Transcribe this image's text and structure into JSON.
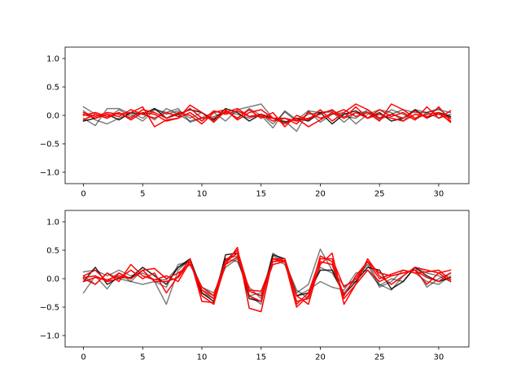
{
  "chart_data": [
    {
      "type": "line",
      "title": "",
      "xlabel": "",
      "ylabel": "",
      "xlim": [
        -1.55,
        32.55
      ],
      "ylim": [
        -1.2,
        1.2
      ],
      "xticks": [
        0,
        5,
        10,
        15,
        20,
        25,
        30
      ],
      "yticks": [
        -1.0,
        -0.5,
        0.0,
        0.5,
        1.0
      ],
      "ytick_labels": [
        "−1.0",
        "−0.5",
        "0.0",
        "0.5",
        "1.0"
      ],
      "x": [
        0,
        1,
        2,
        3,
        4,
        5,
        6,
        7,
        8,
        9,
        10,
        11,
        12,
        13,
        14,
        15,
        16,
        17,
        18,
        19,
        20,
        21,
        22,
        23,
        24,
        25,
        26,
        27,
        28,
        29,
        30,
        31
      ],
      "grid": false,
      "series": [
        {
          "color": "#000000",
          "alpha": 0.5,
          "values": [
            0.15,
            0.02,
            -0.05,
            0.1,
            -0.02,
            0.05,
            -0.08,
            0.12,
            0.02,
            -0.1,
            -0.04,
            0.05,
            -0.1,
            0.1,
            0.15,
            0.2,
            -0.05,
            -0.1,
            -0.28,
            0.08,
            0.05,
            0.06,
            -0.12,
            0.05,
            0.06,
            -0.05,
            0.1,
            0.02,
            -0.08,
            0.05,
            0.1,
            0.05
          ]
        },
        {
          "color": "#000000",
          "alpha": 0.5,
          "values": [
            -0.05,
            -0.18,
            0.12,
            0.12,
            0.02,
            -0.1,
            0.1,
            0.05,
            0.12,
            -0.12,
            -0.05,
            -0.02,
            0.05,
            0.02,
            -0.05,
            0.02,
            -0.15,
            0.06,
            -0.1,
            0.02,
            0.05,
            0.08,
            -0.02,
            -0.05,
            0.1,
            -0.08,
            0.02,
            0.1,
            0.05,
            0.05,
            -0.05,
            0.02
          ]
        },
        {
          "color": "#000000",
          "alpha": 0.5,
          "values": [
            0.08,
            -0.08,
            -0.15,
            -0.05,
            0.05,
            -0.05,
            0.12,
            0.02,
            0.08,
            -0.05,
            0.05,
            -0.1,
            0.08,
            -0.05,
            0.12,
            0.0,
            -0.22,
            0.08,
            -0.08,
            0.08,
            -0.12,
            0.02,
            0.05,
            -0.15,
            0.02,
            0.1,
            0.05,
            -0.1,
            0.1,
            0.05,
            0.12,
            -0.05
          ]
        },
        {
          "color": "#000000",
          "alpha": 0.85,
          "values": [
            -0.1,
            -0.05,
            0.02,
            -0.08,
            0.05,
            0.02,
            0.12,
            -0.05,
            0.02,
            0.1,
            0.05,
            -0.08,
            0.12,
            0.05,
            -0.1,
            0.02,
            -0.05,
            -0.12,
            -0.05,
            -0.1,
            0.05,
            -0.15,
            0.02,
            0.08,
            -0.05,
            0.05,
            -0.1,
            -0.05,
            0.1,
            -0.05,
            0.05,
            -0.02
          ]
        },
        {
          "color": "#ff0000",
          "alpha": 1.0,
          "values": [
            0.05,
            -0.02,
            0.05,
            0.02,
            0.05,
            0.15,
            -0.2,
            -0.08,
            -0.05,
            0.18,
            0.05,
            -0.12,
            0.08,
            -0.05,
            0.1,
            -0.05,
            0.05,
            -0.2,
            0.0,
            -0.08,
            0.1,
            -0.1,
            0.05,
            0.2,
            0.1,
            -0.05,
            0.02,
            -0.05,
            0.08,
            -0.05,
            0.15,
            -0.1
          ]
        },
        {
          "color": "#ff0000",
          "alpha": 1.0,
          "values": [
            -0.08,
            0.02,
            -0.05,
            0.05,
            -0.08,
            0.05,
            0.02,
            -0.1,
            -0.05,
            0.05,
            -0.1,
            0.08,
            0.02,
            0.08,
            -0.02,
            0.02,
            -0.1,
            -0.05,
            -0.15,
            0.05,
            -0.05,
            0.02,
            0.1,
            -0.02,
            0.05,
            -0.1,
            0.2,
            0.1,
            -0.05,
            0.02,
            0.05,
            -0.12
          ]
        },
        {
          "color": "#ff0000",
          "alpha": 1.0,
          "values": [
            0.0,
            0.05,
            -0.02,
            0.05,
            -0.05,
            0.1,
            0.05,
            -0.05,
            0.05,
            0.0,
            -0.15,
            0.05,
            0.1,
            -0.08,
            0.05,
            0.1,
            -0.05,
            -0.15,
            -0.05,
            -0.2,
            -0.08,
            0.05,
            -0.05,
            0.15,
            -0.05,
            0.1,
            -0.02,
            0.05,
            -0.08,
            0.15,
            -0.05,
            0.08
          ]
        },
        {
          "color": "#ff0000",
          "alpha": 1.0,
          "values": [
            0.02,
            -0.05,
            0.02,
            -0.02,
            0.1,
            0.02,
            -0.05,
            0.05,
            -0.02,
            0.12,
            -0.05,
            -0.05,
            0.05,
            0.12,
            -0.02,
            -0.02,
            -0.05,
            -0.05,
            -0.1,
            -0.05,
            0.02,
            0.1,
            -0.05,
            0.05,
            -0.05,
            0.02,
            -0.05,
            -0.1,
            0.02,
            -0.02,
            0.02,
            -0.05
          ]
        }
      ]
    },
    {
      "type": "line",
      "title": "",
      "xlabel": "",
      "ylabel": "",
      "xlim": [
        -1.55,
        32.55
      ],
      "ylim": [
        -1.2,
        1.2
      ],
      "xticks": [
        0,
        5,
        10,
        15,
        20,
        25,
        30
      ],
      "yticks": [
        -1.0,
        -0.5,
        0.0,
        0.5,
        1.0
      ],
      "ytick_labels": [
        "−1.0",
        "−0.5",
        "0.0",
        "0.5",
        "1.0"
      ],
      "x": [
        0,
        1,
        2,
        3,
        4,
        5,
        6,
        7,
        8,
        9,
        10,
        11,
        12,
        13,
        14,
        15,
        16,
        17,
        18,
        19,
        20,
        21,
        22,
        23,
        24,
        25,
        26,
        27,
        28,
        29,
        30,
        31
      ],
      "grid": false,
      "series": [
        {
          "color": "#000000",
          "alpha": 0.5,
          "values": [
            -0.25,
            0.05,
            -0.18,
            0.1,
            -0.05,
            0.15,
            -0.05,
            -0.45,
            0.15,
            0.35,
            -0.2,
            -0.3,
            0.35,
            0.4,
            -0.3,
            -0.45,
            0.4,
            0.3,
            -0.2,
            -0.35,
            0.2,
            0.1,
            -0.25,
            0.0,
            0.25,
            -0.15,
            -0.05,
            0.15,
            0.1,
            -0.05,
            -0.1,
            0.05
          ]
        },
        {
          "color": "#000000",
          "alpha": 0.5,
          "values": [
            0.12,
            0.15,
            0.05,
            0.15,
            0.05,
            0.1,
            -0.02,
            -0.02,
            0.2,
            0.3,
            -0.25,
            -0.35,
            0.35,
            0.3,
            -0.15,
            -0.35,
            0.45,
            0.3,
            -0.25,
            -0.1,
            0.52,
            0.15,
            -0.12,
            -0.05,
            0.3,
            -0.1,
            -0.2,
            0.05,
            0.2,
            0.1,
            0.05,
            -0.05
          ]
        },
        {
          "color": "#000000",
          "alpha": 0.5,
          "values": [
            0.05,
            -0.1,
            0.1,
            0.0,
            -0.05,
            -0.1,
            -0.05,
            -0.15,
            0.25,
            0.3,
            -0.15,
            -0.25,
            0.2,
            0.35,
            -0.3,
            -0.25,
            0.35,
            0.25,
            -0.3,
            -0.2,
            -0.05,
            -0.15,
            -0.2,
            0.1,
            0.15,
            -0.12,
            0.0,
            -0.05,
            0.2,
            -0.15,
            0.0,
            0.1
          ]
        },
        {
          "color": "#000000",
          "alpha": 0.85,
          "values": [
            -0.05,
            0.2,
            -0.1,
            0.02,
            0.02,
            0.2,
            0.05,
            -0.1,
            0.2,
            0.35,
            -0.25,
            -0.4,
            0.42,
            0.45,
            -0.35,
            -0.4,
            0.42,
            0.35,
            -0.3,
            -0.25,
            0.15,
            0.15,
            -0.28,
            -0.05,
            0.2,
            0.15,
            -0.18,
            -0.05,
            0.2,
            0.05,
            -0.05,
            0.02
          ]
        },
        {
          "color": "#ff0000",
          "alpha": 1.0,
          "values": [
            0.05,
            0.15,
            -0.05,
            0.0,
            0.15,
            0.0,
            0.1,
            -0.25,
            0.05,
            0.35,
            -0.4,
            -0.42,
            0.25,
            0.55,
            -0.52,
            -0.58,
            0.35,
            0.3,
            -0.5,
            -0.3,
            0.25,
            0.45,
            -0.45,
            -0.1,
            0.35,
            0.05,
            -0.1,
            0.05,
            0.2,
            0.15,
            0.1,
            0.15
          ]
        },
        {
          "color": "#ff0000",
          "alpha": 1.0,
          "values": [
            0.0,
            -0.1,
            0.1,
            -0.05,
            0.25,
            0.05,
            -0.02,
            0.05,
            -0.05,
            0.3,
            -0.3,
            -0.45,
            0.3,
            0.45,
            -0.3,
            -0.4,
            0.35,
            0.35,
            -0.3,
            -0.45,
            0.3,
            0.25,
            -0.35,
            -0.1,
            0.15,
            -0.05,
            0.05,
            0.1,
            0.15,
            -0.1,
            0.1,
            -0.05
          ]
        },
        {
          "color": "#ff0000",
          "alpha": 1.0,
          "values": [
            -0.05,
            0.02,
            -0.02,
            0.05,
            0.0,
            0.15,
            -0.05,
            -0.05,
            0.02,
            0.3,
            -0.2,
            -0.35,
            0.25,
            0.38,
            -0.22,
            -0.3,
            0.25,
            0.3,
            -0.4,
            -0.35,
            0.4,
            0.3,
            -0.3,
            0.05,
            0.3,
            0.1,
            0.05,
            0.1,
            0.15,
            0.02,
            -0.05,
            0.1
          ]
        },
        {
          "color": "#ff0000",
          "alpha": 1.0,
          "values": [
            0.02,
            0.05,
            -0.05,
            0.1,
            0.0,
            0.15,
            0.18,
            0.0,
            0.1,
            0.25,
            -0.15,
            -0.3,
            0.32,
            0.5,
            -0.2,
            -0.22,
            0.3,
            0.32,
            -0.45,
            -0.25,
            0.35,
            0.35,
            -0.15,
            0.0,
            0.3,
            0.0,
            0.08,
            0.15,
            0.1,
            0.12,
            0.15,
            -0.02
          ]
        }
      ]
    }
  ]
}
